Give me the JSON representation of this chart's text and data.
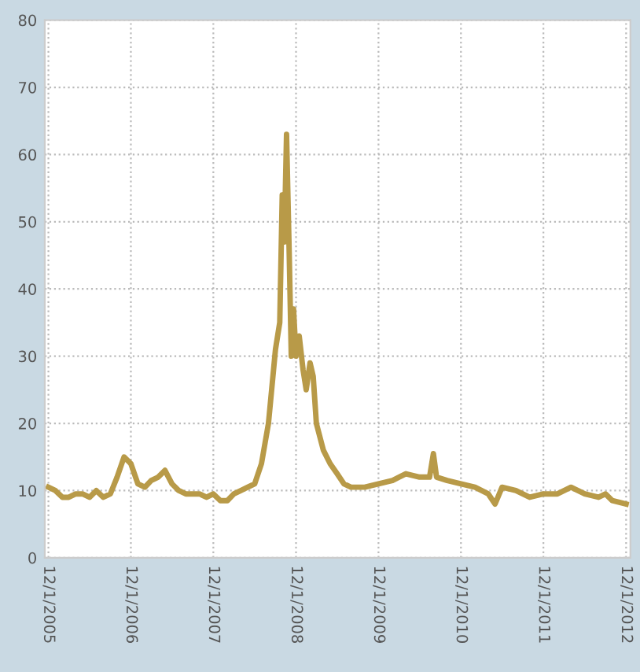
{
  "chart_data": {
    "type": "line",
    "x": [
      "2005-12-01",
      "2006-01-01",
      "2006-02-01",
      "2006-03-01",
      "2006-04-01",
      "2006-05-01",
      "2006-06-01",
      "2006-07-01",
      "2006-08-01",
      "2006-09-01",
      "2006-10-01",
      "2006-11-01",
      "2006-12-01",
      "2007-01-01",
      "2007-02-01",
      "2007-03-01",
      "2007-04-01",
      "2007-05-01",
      "2007-06-01",
      "2007-07-01",
      "2007-08-01",
      "2007-09-01",
      "2007-10-01",
      "2007-11-01",
      "2007-12-01",
      "2008-01-01",
      "2008-02-01",
      "2008-03-01",
      "2008-04-01",
      "2008-05-01",
      "2008-06-01",
      "2008-07-01",
      "2008-08-01",
      "2008-09-01",
      "2008-09-20",
      "2008-10-01",
      "2008-10-10",
      "2008-10-20",
      "2008-11-01",
      "2008-11-10",
      "2008-11-20",
      "2008-12-01",
      "2008-12-15",
      "2009-01-01",
      "2009-01-15",
      "2009-02-01",
      "2009-02-15",
      "2009-03-01",
      "2009-04-01",
      "2009-05-01",
      "2009-06-01",
      "2009-07-01",
      "2009-08-01",
      "2009-10-01",
      "2009-12-01",
      "2010-02-01",
      "2010-04-01",
      "2010-06-01",
      "2010-07-15",
      "2010-08-01",
      "2010-08-15",
      "2010-10-01",
      "2010-12-01",
      "2011-02-01",
      "2011-04-01",
      "2011-05-01",
      "2011-06-01",
      "2011-08-01",
      "2011-10-01",
      "2011-12-01",
      "2012-02-01",
      "2012-04-01",
      "2012-06-01",
      "2012-08-01",
      "2012-09-01",
      "2012-10-01",
      "2012-12-01"
    ],
    "series": [
      {
        "color": "#b89a48",
        "values": [
          10.5,
          10,
          9,
          9,
          9.5,
          9.5,
          9,
          10,
          9,
          9.5,
          12,
          15,
          14,
          11,
          10.5,
          11.5,
          12,
          13,
          11,
          10,
          9.5,
          9.5,
          9.5,
          9,
          9.5,
          8.5,
          8.5,
          9.5,
          10,
          10.5,
          11,
          14,
          20,
          31,
          35,
          54,
          47,
          63,
          45,
          30,
          37,
          30,
          33,
          28,
          25,
          29,
          27,
          20,
          16,
          14,
          12.5,
          11,
          10.5,
          10.5,
          11,
          11.5,
          12.5,
          12,
          12,
          15.5,
          12,
          11.5,
          11,
          10.5,
          9.5,
          8,
          10.5,
          10,
          9,
          9.5,
          9.5,
          10.5,
          9.5,
          9,
          9.5,
          8.5,
          8
        ]
      }
    ],
    "xlim": [
      "2005-11-15",
      "2012-12-20"
    ],
    "xticks": [
      {
        "value": "2005-12-01",
        "label": "12/1/2005"
      },
      {
        "value": "2006-12-01",
        "label": "12/1/2006"
      },
      {
        "value": "2007-12-01",
        "label": "12/1/2007"
      },
      {
        "value": "2008-12-01",
        "label": "12/1/2008"
      },
      {
        "value": "2009-12-01",
        "label": "12/1/2009"
      },
      {
        "value": "2010-12-01",
        "label": "12/1/2010"
      },
      {
        "value": "2011-12-01",
        "label": "12/1/2011"
      },
      {
        "value": "2012-12-01",
        "label": "12/1/2012"
      }
    ],
    "ylim": [
      0,
      80
    ],
    "yticks": [
      0,
      10,
      20,
      30,
      40,
      50,
      60,
      70,
      80
    ],
    "grid": true,
    "line_style": "solid",
    "marker": "none"
  }
}
